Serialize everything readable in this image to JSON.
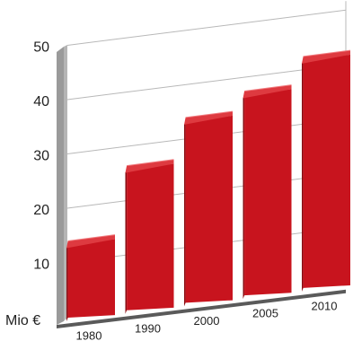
{
  "chart_data": {
    "type": "bar",
    "categories": [
      "1980",
      "1990",
      "2000",
      "2005",
      "2010"
    ],
    "values": [
      14,
      26.5,
      34,
      37.5,
      42.5
    ],
    "ylabel": "Mio €",
    "yticks": [
      "10",
      "20",
      "30",
      "40",
      "50"
    ],
    "ylim": [
      0,
      50
    ],
    "grid": true,
    "colors": {
      "bar_front": "#c8141e",
      "bar_side": "#8a0c12",
      "bar_top": "#de3a40",
      "wall": "#9a9a9a",
      "floor": "#5a5a5a",
      "grid": "#b8b8b8"
    }
  }
}
